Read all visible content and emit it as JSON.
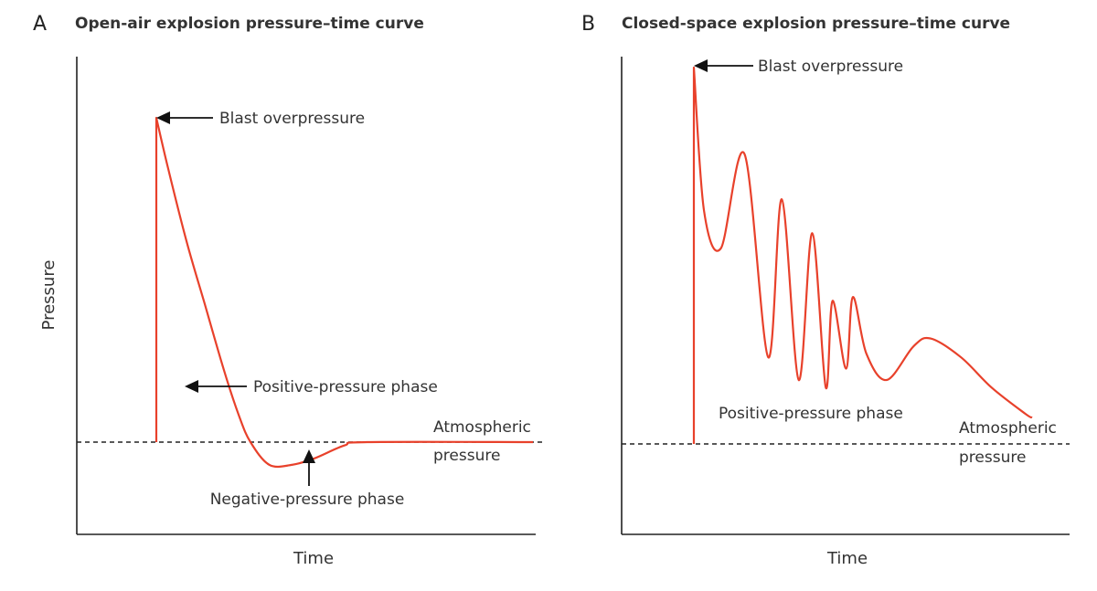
{
  "chart_data": [
    {
      "type": "line",
      "panel_letter": "A",
      "title": "Open-air explosion pressure–time curve",
      "xlabel": "Time",
      "ylabel": "Pressure",
      "grid": false,
      "baseline_label": [
        "Atmospheric",
        "pressure"
      ],
      "annotations": {
        "peak": "Blast overpressure",
        "positive": "Positive-pressure phase",
        "negative": "Negative-pressure phase"
      },
      "series": [
        {
          "x": [
            0.0,
            0.0,
            0.03,
            0.08,
            0.13,
            0.18,
            0.22,
            0.25,
            0.3,
            0.36,
            0.42,
            0.5,
            0.56,
            1.0
          ],
          "y": [
            0.0,
            1.0,
            0.85,
            0.62,
            0.42,
            0.22,
            0.08,
            0.0,
            -0.07,
            -0.07,
            -0.05,
            -0.01,
            0.0,
            0.0
          ]
        }
      ]
    },
    {
      "type": "line",
      "panel_letter": "B",
      "title": "Closed-space explosion pressure–time curve",
      "xlabel": "Time",
      "ylabel": "",
      "grid": false,
      "baseline_label": [
        "Atmospheric",
        "pressure"
      ],
      "annotations": {
        "peak": "Blast overpressure",
        "positive": "Positive-pressure phase"
      },
      "series": [
        {
          "x": [
            0.0,
            0.0,
            0.03,
            0.08,
            0.15,
            0.22,
            0.26,
            0.31,
            0.35,
            0.39,
            0.41,
            0.45,
            0.47,
            0.51,
            0.57,
            0.65,
            0.7,
            0.79,
            0.88,
            0.98,
            1.0
          ],
          "y": [
            0.0,
            1.0,
            0.62,
            0.52,
            0.77,
            0.23,
            0.65,
            0.17,
            0.56,
            0.15,
            0.38,
            0.2,
            0.39,
            0.24,
            0.17,
            0.26,
            0.28,
            0.23,
            0.15,
            0.08,
            0.07
          ]
        }
      ]
    }
  ]
}
